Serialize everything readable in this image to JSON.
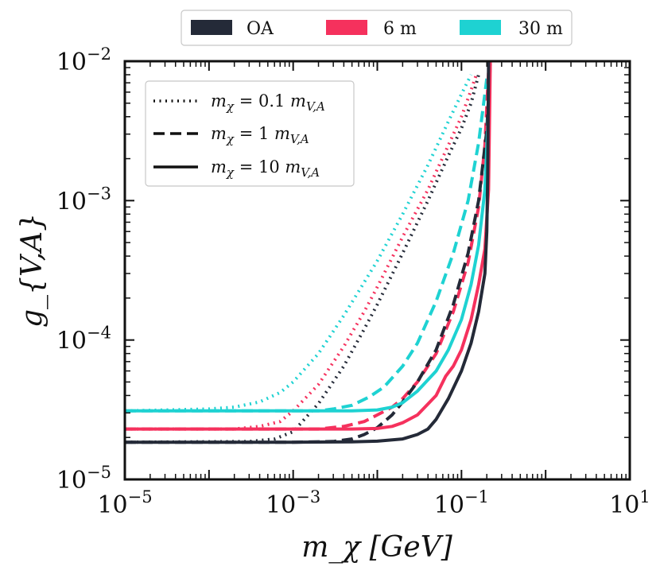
{
  "chart_data": {
    "type": "line",
    "xscale": "log",
    "yscale": "log",
    "xlim": [
      1e-05,
      10
    ],
    "ylim": [
      1e-05,
      0.01
    ],
    "xlabel": "m_χ [GeV]",
    "ylabel": "g_{V,A}",
    "x_ticks": [
      {
        "value": 1e-05,
        "base": "10",
        "exp": "−5"
      },
      {
        "value": 0.001,
        "base": "10",
        "exp": "−3"
      },
      {
        "value": 0.1,
        "base": "10",
        "exp": "−1"
      },
      {
        "value": 10,
        "base": "10",
        "exp": "1"
      }
    ],
    "y_ticks": [
      {
        "value": 1e-05,
        "base": "10",
        "exp": "−5"
      },
      {
        "value": 0.0001,
        "base": "10",
        "exp": "−4"
      },
      {
        "value": 0.001,
        "base": "10",
        "exp": "−3"
      },
      {
        "value": 0.01,
        "base": "10",
        "exp": "−2"
      }
    ],
    "color_legend": [
      {
        "label": "OA",
        "color": "#242a38"
      },
      {
        "label": "6 m",
        "color": "#f5315d"
      },
      {
        "label": "30 m",
        "color": "#1ed2d2"
      }
    ],
    "style_legend": [
      {
        "label": "m_χ = 0.1 m_{V,A}",
        "prefix": "m",
        "sub1": "χ",
        "eq": " = 0.1 ",
        "m2": "m",
        "sub2": "V,A",
        "dash": "dotted"
      },
      {
        "label": "m_χ = 1 m_{V,A}",
        "prefix": "m",
        "sub1": "χ",
        "eq": " = 1 ",
        "m2": "m",
        "sub2": "V,A",
        "dash": "dashed"
      },
      {
        "label": "m_χ = 10 m_{V,A}",
        "prefix": "m",
        "sub1": "χ",
        "eq": " = 10 ",
        "m2": "m",
        "sub2": "V,A",
        "dash": "solid"
      }
    ],
    "series": [
      {
        "name": "30 m, m_χ = 0.1 m_{V,A}",
        "color": "#1ed2d2",
        "dash": "dotted",
        "x": [
          1e-05,
          0.0001,
          0.0002,
          0.0004,
          0.0007,
          0.001,
          0.002,
          0.004,
          0.007,
          0.01,
          0.02,
          0.04,
          0.07,
          0.1,
          0.13
        ],
        "y": [
          3.1e-05,
          3.2e-05,
          3.3e-05,
          3.6e-05,
          4.2e-05,
          5e-05,
          8e-05,
          0.00015,
          0.00026,
          0.00037,
          0.0008,
          0.0018,
          0.0037,
          0.0058,
          0.008
        ]
      },
      {
        "name": "6 m, m_χ = 0.1 m_{V,A}",
        "color": "#f5315d",
        "dash": "dotted",
        "x": [
          1e-05,
          0.0002,
          0.0004,
          0.0007,
          0.001,
          0.002,
          0.004,
          0.007,
          0.01,
          0.02,
          0.04,
          0.07,
          0.1,
          0.13,
          0.15
        ],
        "y": [
          2.3e-05,
          2.3e-05,
          2.4e-05,
          2.6e-05,
          3.1e-05,
          4.8e-05,
          9e-05,
          0.00016,
          0.00024,
          0.00055,
          0.0012,
          0.0025,
          0.004,
          0.0062,
          0.008
        ]
      },
      {
        "name": "OA, m_χ = 0.1 m_{V,A}",
        "color": "#242a38",
        "dash": "dotted",
        "x": [
          1e-05,
          0.0003,
          0.0006,
          0.001,
          0.002,
          0.004,
          0.007,
          0.01,
          0.02,
          0.04,
          0.07,
          0.1,
          0.13,
          0.16
        ],
        "y": [
          1.85e-05,
          1.87e-05,
          1.95e-05,
          2.2e-05,
          3.5e-05,
          6.5e-05,
          0.00012,
          0.00018,
          0.00042,
          0.001,
          0.0021,
          0.0033,
          0.005,
          0.008
        ]
      },
      {
        "name": "30 m, m_χ = 1 m_{V,A}",
        "color": "#1ed2d2",
        "dash": "dashed",
        "x": [
          1e-05,
          0.0003,
          0.0007,
          0.001,
          0.002,
          0.003,
          0.005,
          0.008,
          0.012,
          0.02,
          0.03,
          0.05,
          0.08,
          0.12,
          0.16,
          0.2
        ],
        "y": [
          3.1e-05,
          3.1e-05,
          3.1e-05,
          3.1e-05,
          3.1e-05,
          3.2e-05,
          3.4e-05,
          3.9e-05,
          4.6e-05,
          6.5e-05,
          9.5e-05,
          0.00019,
          0.00042,
          0.001,
          0.0026,
          0.0075
        ]
      },
      {
        "name": "6 m, m_χ = 1 m_{V,A}",
        "color": "#f5315d",
        "dash": "dashed",
        "x": [
          1e-05,
          0.001,
          0.002,
          0.004,
          0.007,
          0.01,
          0.015,
          0.02,
          0.03,
          0.05,
          0.08,
          0.12,
          0.16,
          0.19,
          0.21
        ],
        "y": [
          2.3e-05,
          2.3e-05,
          2.3e-05,
          2.4e-05,
          2.6e-05,
          2.9e-05,
          3.3e-05,
          3.8e-05,
          5e-05,
          8e-05,
          0.00016,
          0.00036,
          0.0009,
          0.0025,
          0.0085
        ]
      },
      {
        "name": "OA, m_χ = 1 m_{V,A}",
        "color": "#242a38",
        "dash": "dashed",
        "x": [
          1e-05,
          0.001,
          0.003,
          0.005,
          0.007,
          0.01,
          0.015,
          0.02,
          0.03,
          0.05,
          0.08,
          0.12,
          0.16,
          0.2,
          0.22
        ],
        "y": [
          1.85e-05,
          1.85e-05,
          1.87e-05,
          1.95e-05,
          2.1e-05,
          2.35e-05,
          2.9e-05,
          3.6e-05,
          5e-05,
          8.5e-05,
          0.00018,
          0.00042,
          0.001,
          0.0032,
          0.0095
        ]
      },
      {
        "name": "30 m, m_χ = 10 m_{V,A}",
        "color": "#1ed2d2",
        "dash": "solid",
        "x": [
          1e-05,
          0.001,
          0.005,
          0.01,
          0.015,
          0.02,
          0.03,
          0.05,
          0.07,
          0.1,
          0.13,
          0.16,
          0.19,
          0.21,
          0.215
        ],
        "y": [
          3.1e-05,
          3.1e-05,
          3.1e-05,
          3.15e-05,
          3.3e-05,
          3.55e-05,
          4.3e-05,
          6e-05,
          8.5e-05,
          0.00014,
          0.00025,
          0.00048,
          0.0012,
          0.0045,
          0.01
        ]
      },
      {
        "name": "6 m, m_χ = 10 m_{V,A}",
        "color": "#f5315d",
        "dash": "solid",
        "x": [
          1e-05,
          0.001,
          0.005,
          0.01,
          0.015,
          0.02,
          0.03,
          0.05,
          0.065,
          0.08,
          0.1,
          0.13,
          0.16,
          0.19,
          0.21,
          0.22
        ],
        "y": [
          2.3e-05,
          2.3e-05,
          2.3e-05,
          2.32e-05,
          2.4e-05,
          2.55e-05,
          2.9e-05,
          4e-05,
          5.5e-05,
          6.5e-05,
          8.5e-05,
          0.00014,
          0.00025,
          0.00045,
          0.0012,
          0.01
        ]
      },
      {
        "name": "OA, m_χ = 10 m_{V,A}",
        "color": "#242a38",
        "dash": "solid",
        "x": [
          1e-05,
          0.001,
          0.005,
          0.01,
          0.02,
          0.03,
          0.04,
          0.05,
          0.07,
          0.1,
          0.13,
          0.16,
          0.19,
          0.2,
          0.205,
          0.21
        ],
        "y": [
          1.85e-05,
          1.85e-05,
          1.86e-05,
          1.88e-05,
          1.95e-05,
          2.1e-05,
          2.3e-05,
          2.7e-05,
          3.8e-05,
          6e-05,
          9.5e-05,
          0.00016,
          0.0003,
          0.0006,
          0.0015,
          0.01
        ]
      }
    ]
  }
}
